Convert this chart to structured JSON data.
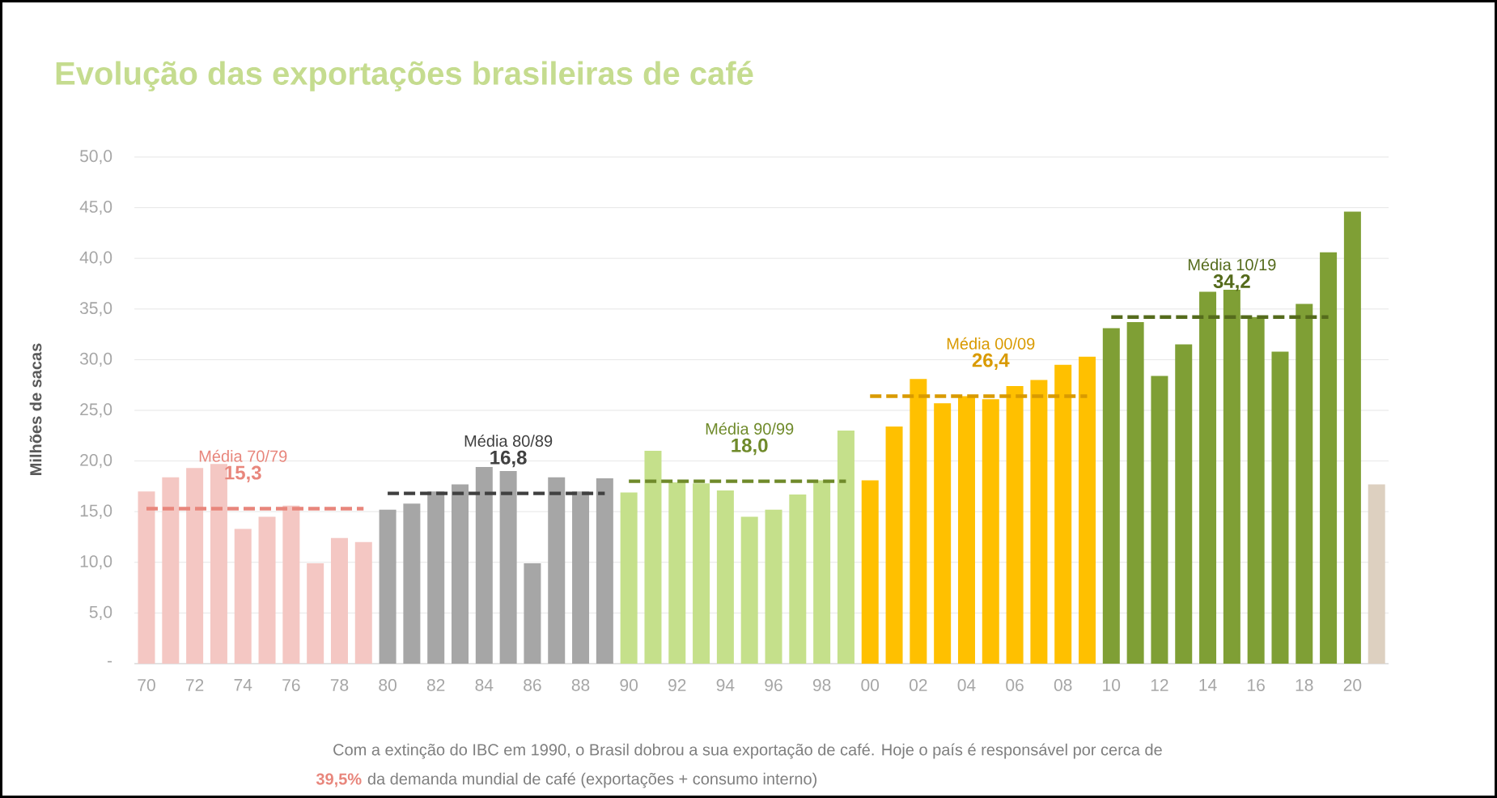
{
  "chart_data": {
    "type": "bar",
    "title": "Evolução das exportações brasileiras de café",
    "ylabel": "Milhões de sacas",
    "categories": [
      "70",
      null,
      "72",
      null,
      "74",
      null,
      "76",
      null,
      "78",
      null,
      "80",
      null,
      "82",
      null,
      "84",
      null,
      "86",
      null,
      "88",
      null,
      "90",
      null,
      "92",
      null,
      "94",
      null,
      "96",
      null,
      "98",
      null,
      "00",
      null,
      "02",
      null,
      "04",
      null,
      "06",
      null,
      "08",
      null,
      "10",
      null,
      "12",
      null,
      "14",
      null,
      "16",
      null,
      "18",
      null,
      "20",
      null
    ],
    "series": [
      {
        "values": [
          17.0,
          18.4,
          19.3,
          19.7,
          13.3,
          14.5,
          15.6,
          9.9,
          12.4,
          12.0,
          15.2,
          15.8,
          17.0,
          17.7,
          19.4,
          19.0,
          9.9,
          18.4,
          17.0,
          18.3,
          16.9,
          21.0,
          17.9,
          17.8,
          17.1,
          14.5,
          15.2,
          16.7,
          18.1,
          23.0,
          18.1,
          23.4,
          28.1,
          25.7,
          26.4,
          26.1,
          27.4,
          28.0,
          29.5,
          30.3,
          33.1,
          33.7,
          28.4,
          31.5,
          36.7,
          36.9,
          34.2,
          30.8,
          35.5,
          40.6,
          44.6,
          17.7
        ],
        "colors": [
          "#f4c7c3",
          "#f4c7c3",
          "#f4c7c3",
          "#f4c7c3",
          "#f4c7c3",
          "#f4c7c3",
          "#f4c7c3",
          "#f4c7c3",
          "#f4c7c3",
          "#f4c7c3",
          "#a6a6a6",
          "#a6a6a6",
          "#a6a6a6",
          "#a6a6a6",
          "#a6a6a6",
          "#a6a6a6",
          "#a6a6a6",
          "#a6a6a6",
          "#a6a6a6",
          "#a6a6a6",
          "#c5e08b",
          "#c5e08b",
          "#c5e08b",
          "#c5e08b",
          "#c5e08b",
          "#c5e08b",
          "#c5e08b",
          "#c5e08b",
          "#c5e08b",
          "#c5e08b",
          "#ffc000",
          "#ffc000",
          "#ffc000",
          "#ffc000",
          "#ffc000",
          "#ffc000",
          "#ffc000",
          "#ffc000",
          "#ffc000",
          "#ffc000",
          "#7f9f35",
          "#7f9f35",
          "#7f9f35",
          "#7f9f35",
          "#7f9f35",
          "#7f9f35",
          "#7f9f35",
          "#7f9f35",
          "#7f9f35",
          "#7f9f35",
          "#7f9f35",
          "#ddd0c0"
        ]
      },
      {
        "type": "line",
        "name": "Média 70/79",
        "color": "#e8867c",
        "line_style": "dashed",
        "marker": "none",
        "values": [
          15.3,
          15.3,
          15.3,
          15.3,
          15.3,
          15.3,
          15.3,
          15.3,
          15.3,
          15.3,
          null,
          null,
          null,
          null,
          null,
          null,
          null,
          null,
          null,
          null,
          null,
          null,
          null,
          null,
          null,
          null,
          null,
          null,
          null,
          null,
          null,
          null,
          null,
          null,
          null,
          null,
          null,
          null,
          null,
          null,
          null,
          null,
          null,
          null,
          null,
          null,
          null,
          null,
          null,
          null,
          null,
          null
        ],
        "value_labels": [
          null,
          null,
          null,
          null,
          "15,3",
          null,
          null,
          null,
          null,
          null,
          null,
          null,
          null,
          null,
          null,
          null,
          null,
          null,
          null,
          null,
          null,
          null,
          null,
          null,
          null,
          null,
          null,
          null,
          null,
          null,
          null,
          null,
          null,
          null,
          null,
          null,
          null,
          null,
          null,
          null,
          null,
          null,
          null,
          null,
          null,
          null,
          null,
          null,
          null,
          null,
          null,
          null
        ]
      },
      {
        "type": "line",
        "name": "Média 80/89",
        "color": "#404040",
        "line_style": "dashed",
        "marker": "none",
        "values": [
          null,
          null,
          null,
          null,
          null,
          null,
          null,
          null,
          null,
          null,
          16.8,
          16.8,
          16.8,
          16.8,
          16.8,
          16.8,
          16.8,
          16.8,
          16.8,
          16.8,
          null,
          null,
          null,
          null,
          null,
          null,
          null,
          null,
          null,
          null,
          null,
          null,
          null,
          null,
          null,
          null,
          null,
          null,
          null,
          null,
          null,
          null,
          null,
          null,
          null,
          null,
          null,
          null,
          null,
          null,
          null,
          null
        ],
        "value_labels": [
          null,
          null,
          null,
          null,
          null,
          null,
          null,
          null,
          null,
          null,
          null,
          null,
          null,
          null,
          null,
          "16,8",
          null,
          null,
          null,
          null,
          null,
          null,
          null,
          null,
          null,
          null,
          null,
          null,
          null,
          null,
          null,
          null,
          null,
          null,
          null,
          null,
          null,
          null,
          null,
          null,
          null,
          null,
          null,
          null,
          null,
          null,
          null,
          null,
          null,
          null,
          null,
          null
        ]
      },
      {
        "type": "line",
        "name": "Média 90/99",
        "color": "#6f8a2a",
        "line_style": "dashed",
        "marker": "none",
        "values": [
          null,
          null,
          null,
          null,
          null,
          null,
          null,
          null,
          null,
          null,
          null,
          null,
          null,
          null,
          null,
          null,
          null,
          null,
          null,
          null,
          18.0,
          18.0,
          18.0,
          18.0,
          18.0,
          18.0,
          18.0,
          18.0,
          18.0,
          18.0,
          null,
          null,
          null,
          null,
          null,
          null,
          null,
          null,
          null,
          null,
          null,
          null,
          null,
          null,
          null,
          null,
          null,
          null,
          null,
          null,
          null,
          null
        ],
        "value_labels": [
          null,
          null,
          null,
          null,
          null,
          null,
          null,
          null,
          null,
          null,
          null,
          null,
          null,
          null,
          null,
          null,
          null,
          null,
          null,
          null,
          null,
          null,
          null,
          null,
          null,
          "18,0",
          null,
          null,
          null,
          null,
          null,
          null,
          null,
          null,
          null,
          null,
          null,
          null,
          null,
          null,
          null,
          null,
          null,
          null,
          null,
          null,
          null,
          null,
          null,
          null,
          null,
          null
        ]
      },
      {
        "type": "line",
        "name": "Média 00/09",
        "color": "#d99a00",
        "line_style": "dashed",
        "marker": "none",
        "values": [
          null,
          null,
          null,
          null,
          null,
          null,
          null,
          null,
          null,
          null,
          null,
          null,
          null,
          null,
          null,
          null,
          null,
          null,
          null,
          null,
          null,
          null,
          null,
          null,
          null,
          null,
          null,
          null,
          null,
          null,
          26.4,
          26.4,
          26.4,
          26.4,
          26.4,
          26.4,
          26.4,
          26.4,
          26.4,
          26.4,
          null,
          null,
          null,
          null,
          null,
          null,
          null,
          null,
          null,
          null,
          null,
          null
        ],
        "value_labels": [
          null,
          null,
          null,
          null,
          null,
          null,
          null,
          null,
          null,
          null,
          null,
          null,
          null,
          null,
          null,
          null,
          null,
          null,
          null,
          null,
          null,
          null,
          null,
          null,
          null,
          null,
          null,
          null,
          null,
          null,
          null,
          null,
          null,
          null,
          null,
          "26,4",
          null,
          null,
          null,
          null,
          null,
          null,
          null,
          null,
          null,
          null,
          null,
          null,
          null,
          null,
          null,
          null
        ]
      },
      {
        "type": "line",
        "name": "Média 10/19",
        "color": "#556b1c",
        "line_style": "dashed",
        "marker": "none",
        "values": [
          null,
          null,
          null,
          null,
          null,
          null,
          null,
          null,
          null,
          null,
          null,
          null,
          null,
          null,
          null,
          null,
          null,
          null,
          null,
          null,
          null,
          null,
          null,
          null,
          null,
          null,
          null,
          null,
          null,
          null,
          null,
          null,
          null,
          null,
          null,
          null,
          null,
          null,
          null,
          null,
          34.2,
          34.2,
          34.2,
          34.2,
          34.2,
          34.2,
          34.2,
          34.2,
          34.2,
          34.2,
          null,
          null
        ],
        "value_labels": [
          null,
          null,
          null,
          null,
          null,
          null,
          null,
          null,
          null,
          null,
          null,
          null,
          null,
          null,
          null,
          null,
          null,
          null,
          null,
          null,
          null,
          null,
          null,
          null,
          null,
          null,
          null,
          null,
          null,
          null,
          null,
          null,
          null,
          null,
          null,
          null,
          null,
          null,
          null,
          null,
          null,
          null,
          null,
          null,
          null,
          "34,2",
          null,
          null,
          null,
          null,
          null,
          null
        ]
      }
    ],
    "ylim": [
      0,
      50
    ],
    "yticks": [
      {
        "value": 0,
        "label": "-"
      },
      {
        "value": 5,
        "label": "5,0"
      },
      {
        "value": 10,
        "label": "10,0"
      },
      {
        "value": 15,
        "label": "15,0"
      },
      {
        "value": 20,
        "label": "20,0"
      },
      {
        "value": 25,
        "label": "25,0"
      },
      {
        "value": 30,
        "label": "30,0"
      },
      {
        "value": 35,
        "label": "35,0"
      },
      {
        "value": 40,
        "label": "40,0"
      },
      {
        "value": 45,
        "label": "45,0"
      },
      {
        "value": 50,
        "label": "50,0"
      }
    ],
    "grid": "y",
    "annotations": [
      "Com a extinção do IBC em 1990, o Brasil dobrou a sua exportação de café. Hoje o país é responsável por cerca de",
      "39,5%",
      "da demanda mundial de café (exportações + consumo interno)"
    ]
  }
}
